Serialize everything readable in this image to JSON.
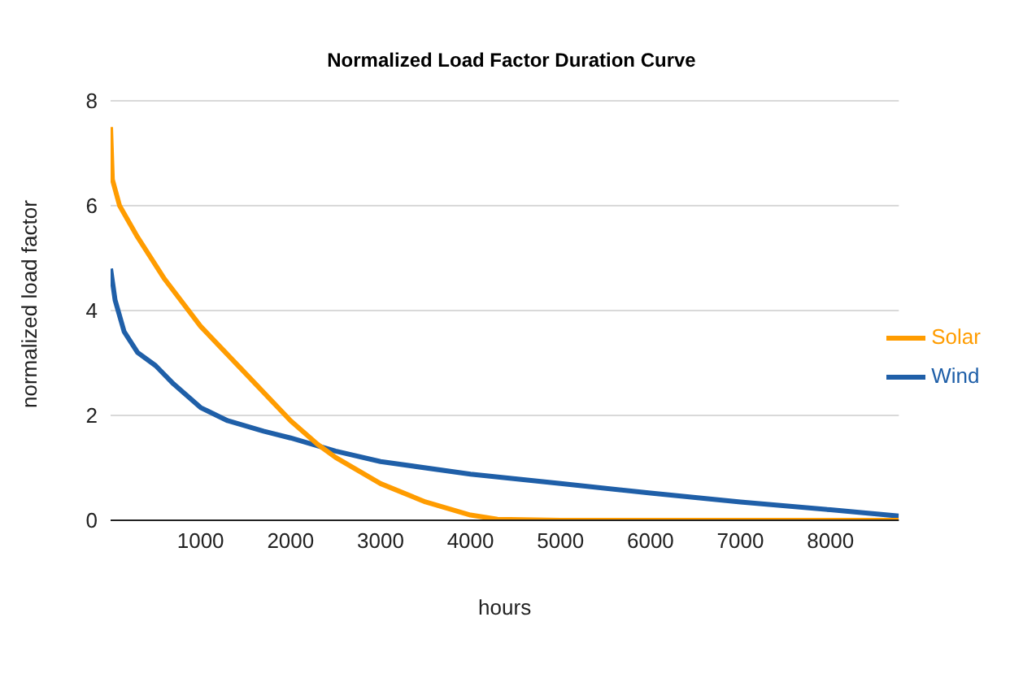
{
  "chart_data": {
    "type": "line",
    "title": "Normalized Load Factor Duration Curve",
    "xlabel": "hours",
    "ylabel": "normalized load factor",
    "series": [
      {
        "name": "Wind",
        "color": "#1f5fa8",
        "x": [
          0,
          50,
          150,
          300,
          500,
          700,
          1000,
          1300,
          1700,
          2000,
          2500,
          3000,
          4000,
          5000,
          6000,
          7000,
          8000,
          8760
        ],
        "values": [
          4.8,
          4.2,
          3.6,
          3.2,
          2.95,
          2.6,
          2.15,
          1.9,
          1.7,
          1.57,
          1.32,
          1.12,
          0.88,
          0.7,
          0.52,
          0.35,
          0.2,
          0.08
        ]
      },
      {
        "name": "Solar",
        "color": "#ff9c00",
        "x": [
          0,
          20,
          100,
          300,
          600,
          1000,
          1500,
          2000,
          2300,
          2500,
          3000,
          3500,
          4000,
          4300,
          5000,
          8760
        ],
        "values": [
          7.5,
          6.5,
          6.0,
          5.4,
          4.6,
          3.7,
          2.8,
          1.9,
          1.45,
          1.2,
          0.7,
          0.35,
          0.1,
          0.02,
          0,
          0
        ]
      }
    ],
    "xlim": [
      0,
      8760
    ],
    "xticks": [
      1000,
      2000,
      3000,
      4000,
      5000,
      6000,
      7000,
      8000
    ],
    "ylim": [
      0,
      8
    ],
    "yticks": [
      0,
      2,
      4,
      6,
      8
    ],
    "grid": "y",
    "legend": "right",
    "marker": "none",
    "line_style": "solid"
  }
}
